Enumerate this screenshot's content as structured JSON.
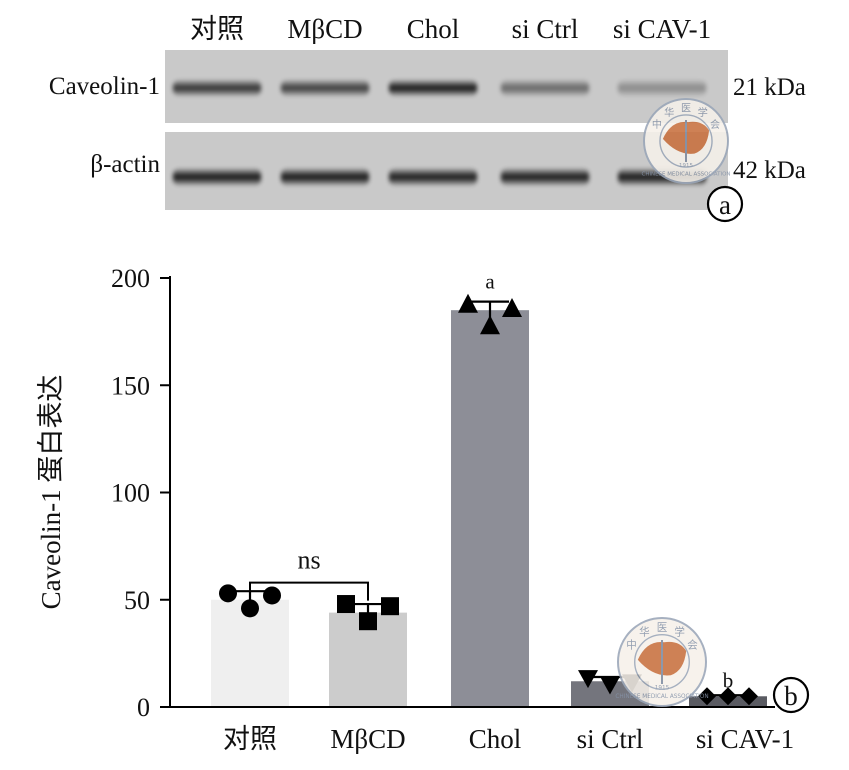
{
  "blot": {
    "lanes": [
      "对照",
      "MβCD",
      "Chol",
      "si Ctrl",
      "si CAV-1"
    ],
    "rows": [
      {
        "protein": "Caveolin-1",
        "marker": "21 kDa",
        "intensities": [
          0.78,
          0.72,
          0.92,
          0.5,
          0.32
        ]
      },
      {
        "protein": "β-actin",
        "marker": "42 kDa",
        "intensities": [
          0.92,
          0.92,
          0.9,
          0.9,
          0.92
        ]
      }
    ],
    "panel_label": "a"
  },
  "chart_data": {
    "type": "bar",
    "categories": [
      "对照",
      "MβCD",
      "Chol",
      "si Ctrl",
      "si CAV-1"
    ],
    "values": [
      50,
      44,
      185,
      12,
      5
    ],
    "errors": [
      4,
      4,
      4,
      2,
      0.5
    ],
    "points": [
      [
        53,
        52,
        46
      ],
      [
        48,
        47,
        40
      ],
      [
        188,
        186,
        178
      ],
      [
        13,
        11,
        10
      ],
      [
        5,
        5,
        5
      ]
    ],
    "marker_shapes": [
      "circle",
      "square",
      "triangle-up",
      "triangle-down",
      "diamond"
    ],
    "bar_colors": [
      "#efefef",
      "#cccccc",
      "#8d8e97",
      "#74757d",
      "#5a5b62"
    ],
    "ylabel": "Caveolin-1 蛋白表达",
    "xlabel": "",
    "ylim": [
      0,
      200
    ],
    "yticks": [
      0,
      50,
      100,
      150,
      200
    ],
    "annotations": [
      {
        "text": "ns",
        "from": 0,
        "to": 1,
        "type": "bracket",
        "y": 58
      },
      {
        "text": "a",
        "at": 2,
        "y": 195
      },
      {
        "text": "b",
        "at": 4,
        "y": 9
      }
    ],
    "panel_label": "b",
    "grid": false
  },
  "watermark": {
    "top_text": "中华医学会",
    "bottom_text": "CHINESE MEDICAL ASSOCIATION",
    "year": "1915"
  }
}
